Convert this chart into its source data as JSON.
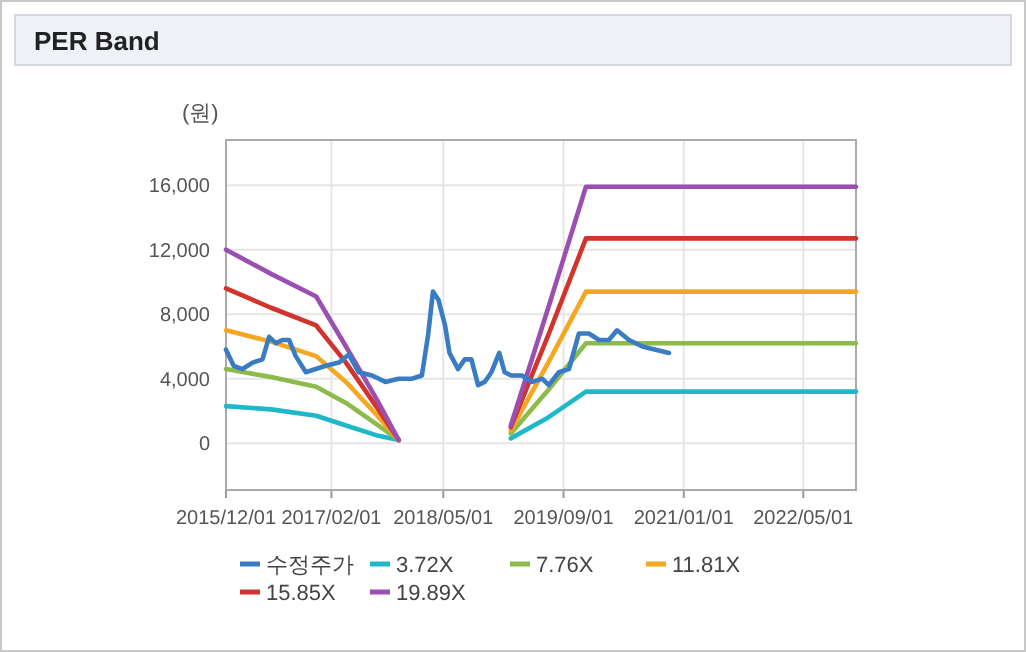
{
  "chart_data": {
    "type": "line",
    "title": "PER Band",
    "ylabel": "(원)",
    "xlim": [
      "2015-12-01",
      "2022-12-01"
    ],
    "ylim": [
      -2900,
      18800
    ],
    "xticks": [
      {
        "value": "2015-12-01",
        "label": "2015/12/01"
      },
      {
        "value": "2017-02-01",
        "label": "2017/02/01"
      },
      {
        "value": "2018-05-01",
        "label": "2018/05/01"
      },
      {
        "value": "2019-09-01",
        "label": "2019/09/01"
      },
      {
        "value": "2021-01-01",
        "label": "2021/01/01"
      },
      {
        "value": "2022-05-01",
        "label": "2022/05/01"
      }
    ],
    "yticks": [
      {
        "value": 0,
        "label": "0"
      },
      {
        "value": 4000,
        "label": "4,000"
      },
      {
        "value": 8000,
        "label": "8,000"
      },
      {
        "value": 12000,
        "label": "12,000"
      },
      {
        "value": 16000,
        "label": "16,000"
      }
    ],
    "grid": true,
    "legend": "bottom",
    "marker": "none",
    "line_style": "solid",
    "series": [
      {
        "name": "수정주가",
        "color": "#3a7cc4",
        "x": [
          "2015-12-01",
          "2016-01-01",
          "2016-02-06",
          "2016-03-18",
          "2016-04-27",
          "2016-05-24",
          "2016-06-20",
          "2016-07-17",
          "2016-08-13",
          "2016-09-09",
          "2016-10-20",
          "2016-11-29",
          "2017-01-09",
          "2017-03-03",
          "2017-04-13",
          "2017-05-23",
          "2017-07-16",
          "2017-09-08",
          "2017-10-31",
          "2017-12-24",
          "2018-02-03",
          "2018-03-01",
          "2018-03-20",
          "2018-04-11",
          "2018-05-08",
          "2018-05-26",
          "2018-06-30",
          "2018-07-27",
          "2018-08-23",
          "2018-09-19",
          "2018-10-16",
          "2018-11-12",
          "2018-12-14",
          "2019-01-05",
          "2019-02-01",
          "2019-03-16",
          "2019-04-27",
          "2019-06-06",
          "2019-07-03",
          "2019-08-13",
          "2019-09-23",
          "2019-11-02",
          "2019-12-13",
          "2020-01-23",
          "2020-03-03",
          "2020-04-05",
          "2020-05-24",
          "2020-07-17",
          "2020-09-09",
          "2020-11-02"
        ],
        "values": [
          5800,
          4800,
          4600,
          5000,
          5200,
          6600,
          6200,
          6400,
          6400,
          5400,
          4400,
          4600,
          4800,
          5000,
          5500,
          4400,
          4200,
          3800,
          4000,
          4000,
          4200,
          6800,
          9400,
          8900,
          7300,
          5600,
          4600,
          5200,
          5200,
          3600,
          3800,
          4400,
          5600,
          4400,
          4200,
          4200,
          3800,
          4000,
          3600,
          4400,
          4600,
          6800,
          6800,
          6400,
          6400,
          7000,
          6400,
          6000,
          5800,
          5600
        ]
      },
      {
        "name": "3.72X",
        "color": "#20b8c8",
        "x": [
          "2015-12-01",
          "2016-06-01",
          "2016-12-01",
          "2017-04-01",
          "2017-08-01",
          "2017-11-01",
          null,
          "2019-01-30",
          "2019-07-01",
          "2019-12-01",
          "2022-12-01"
        ],
        "values": [
          2300,
          2100,
          1700,
          1100,
          500,
          200,
          null,
          300,
          1600,
          3200,
          3200
        ]
      },
      {
        "name": "7.76X",
        "color": "#8cbb4c",
        "x": [
          "2015-12-01",
          "2016-06-01",
          "2016-12-01",
          "2017-04-01",
          "2017-08-01",
          "2017-11-01",
          null,
          "2019-01-30",
          "2019-07-01",
          "2019-12-01",
          "2022-12-01"
        ],
        "values": [
          4600,
          4100,
          3500,
          2500,
          1200,
          200,
          null,
          600,
          3300,
          6200,
          6200
        ]
      },
      {
        "name": "11.81X",
        "color": "#f5a623",
        "x": [
          "2015-12-01",
          "2016-06-01",
          "2016-12-01",
          "2017-04-01",
          "2017-08-01",
          "2017-11-01",
          null,
          "2019-01-30",
          "2019-07-01",
          "2019-12-01",
          "2022-12-01"
        ],
        "values": [
          7000,
          6300,
          5400,
          3800,
          1800,
          200,
          null,
          800,
          5000,
          9400,
          9400
        ]
      },
      {
        "name": "15.85X",
        "color": "#d0342c",
        "x": [
          "2015-12-01",
          "2016-06-01",
          "2016-12-01",
          "2017-04-01",
          "2017-08-01",
          "2017-11-01",
          null,
          "2019-01-30",
          "2019-07-01",
          "2019-12-01",
          "2022-12-01"
        ],
        "values": [
          9600,
          8400,
          7300,
          5000,
          2300,
          200,
          null,
          1000,
          6700,
          12700,
          12700
        ]
      },
      {
        "name": "19.89X",
        "color": "#9b4fb0",
        "x": [
          "2015-12-01",
          "2016-06-01",
          "2016-12-01",
          "2017-04-01",
          "2017-08-01",
          "2017-11-01",
          null,
          "2019-01-30",
          "2019-07-01",
          "2019-12-01",
          "2022-12-01"
        ],
        "values": [
          12000,
          10500,
          9100,
          6000,
          2800,
          200,
          null,
          1100,
          8400,
          15900,
          15900
        ]
      }
    ]
  }
}
